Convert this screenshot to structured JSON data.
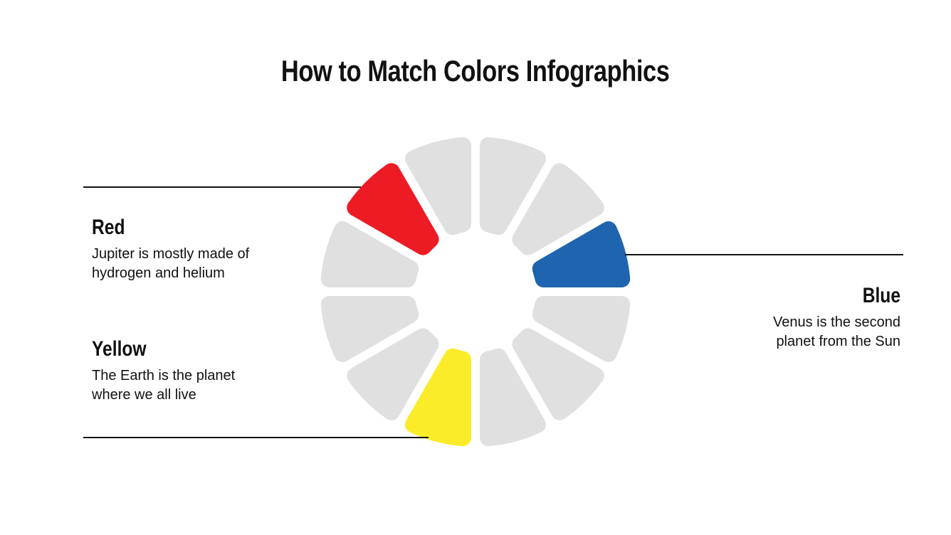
{
  "title": "How to Match Colors Infographics",
  "items": [
    {
      "heading": "Red",
      "text_line1": "Jupiter is mostly made of",
      "text_line2": "hydrogen and helium",
      "color": "#ed1c24"
    },
    {
      "heading": "Blue",
      "text_line1": "Venus is the second",
      "text_line2": "planet from the Sun",
      "color": "#1f64ae"
    },
    {
      "heading": "Yellow",
      "text_line1": "The Earth is the planet",
      "text_line2": "where we all live",
      "color": "#fbec2a"
    }
  ],
  "wheel": {
    "segment_count": 12,
    "inactive_color": "#e0e0e0",
    "highlighted": [
      {
        "segment": 10,
        "color": "#ed1c24"
      },
      {
        "segment": 2,
        "color": "#1f64ae"
      },
      {
        "segment": 6,
        "color": "#fbec2a"
      }
    ]
  }
}
